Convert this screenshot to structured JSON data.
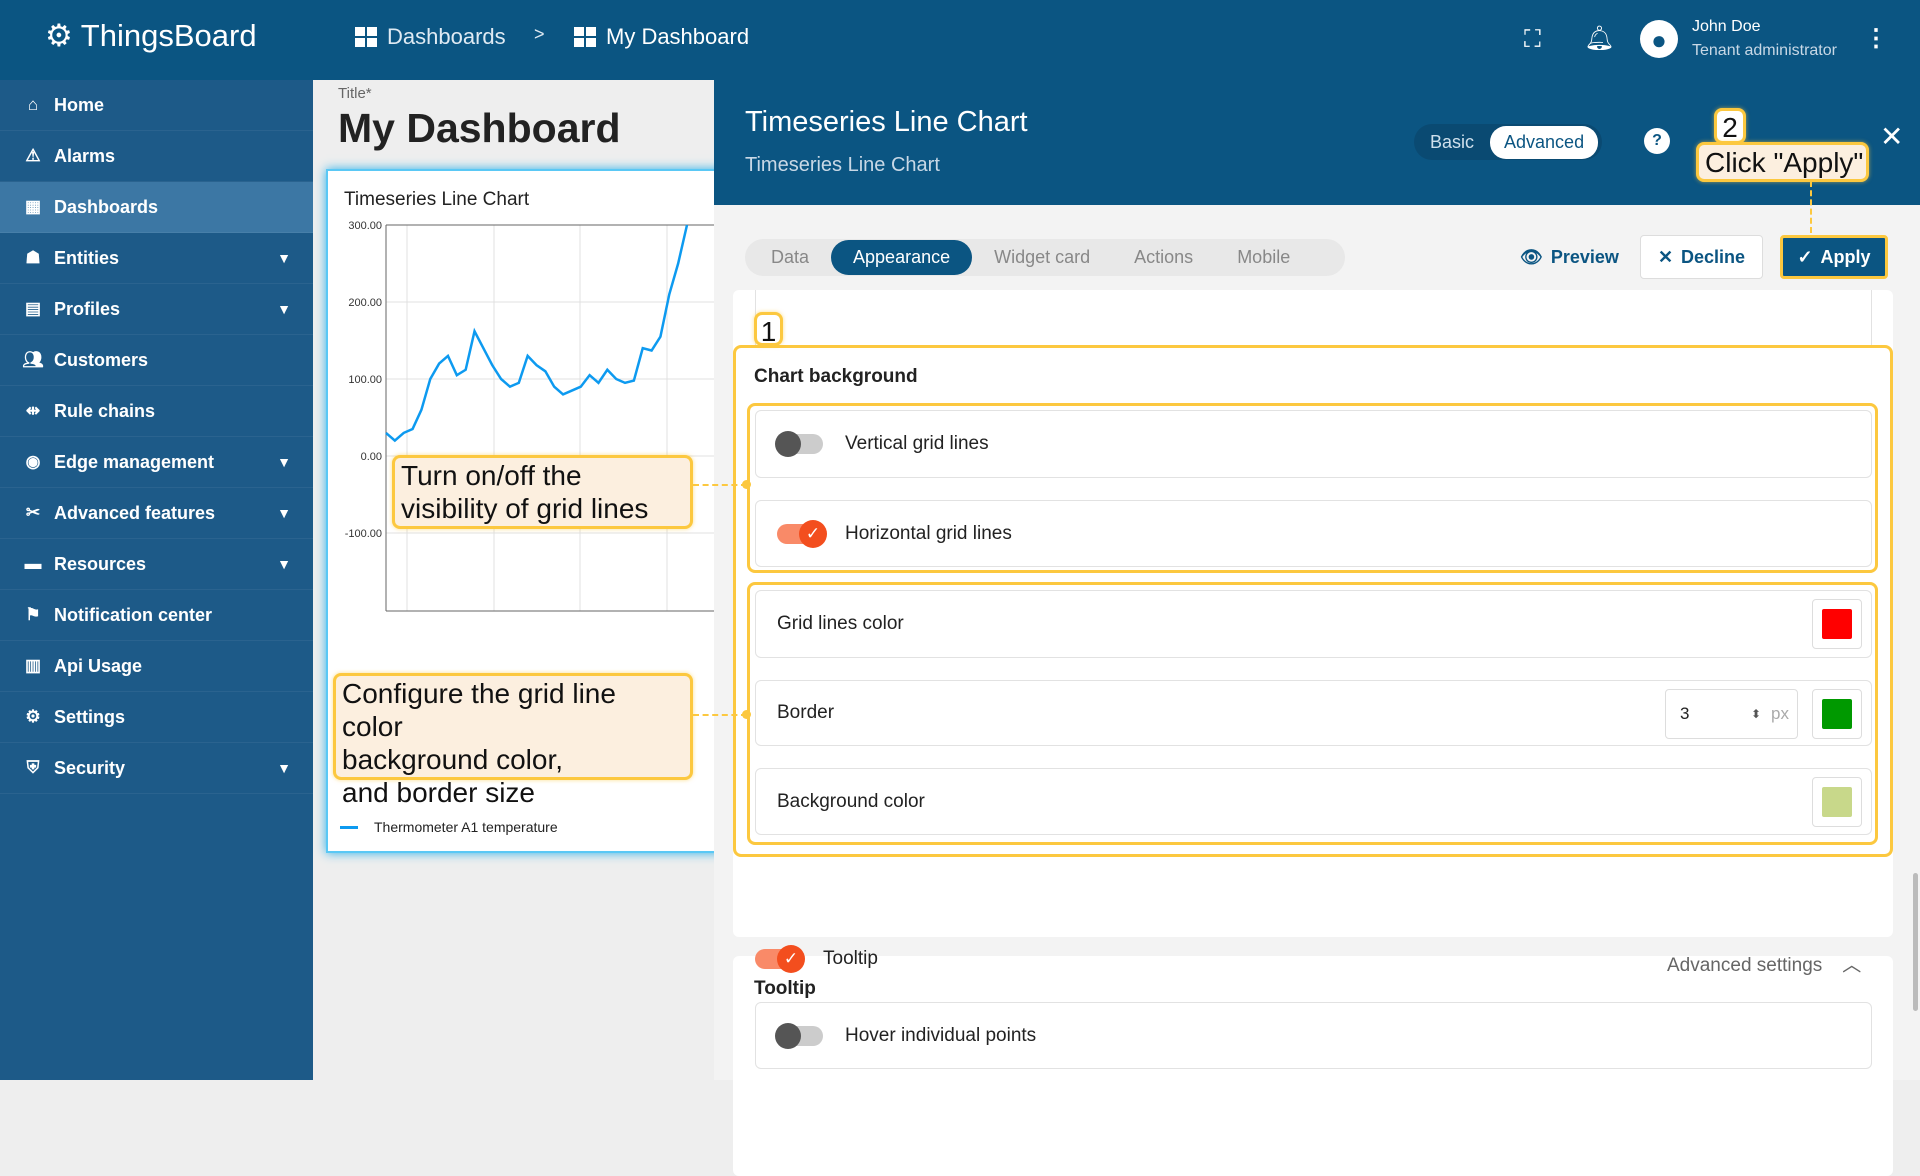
{
  "app": {
    "name": "ThingsBoard"
  },
  "breadcrumb": [
    {
      "label": "Dashboards"
    },
    {
      "label": "My Dashboard"
    }
  ],
  "breadcrumb_separator": ">",
  "user": {
    "name": "John Doe",
    "role": "Tenant administrator"
  },
  "sidebar": {
    "items": [
      {
        "label": "Home",
        "icon": "home-icon"
      },
      {
        "label": "Alarms",
        "icon": "warning-icon"
      },
      {
        "label": "Dashboards",
        "icon": "dashboard-icon",
        "active": true
      },
      {
        "label": "Entities",
        "icon": "entities-icon",
        "expandable": true
      },
      {
        "label": "Profiles",
        "icon": "profiles-icon",
        "expandable": true
      },
      {
        "label": "Customers",
        "icon": "customers-icon"
      },
      {
        "label": "Rule chains",
        "icon": "rule-chains-icon"
      },
      {
        "label": "Edge management",
        "icon": "edge-icon",
        "expandable": true
      },
      {
        "label": "Advanced features",
        "icon": "tools-icon",
        "expandable": true
      },
      {
        "label": "Resources",
        "icon": "folder-icon",
        "expandable": true
      },
      {
        "label": "Notification center",
        "icon": "notification-icon"
      },
      {
        "label": "Api Usage",
        "icon": "chart-icon"
      },
      {
        "label": "Settings",
        "icon": "gear-icon"
      },
      {
        "label": "Security",
        "icon": "shield-icon",
        "expandable": true
      }
    ]
  },
  "dashboard": {
    "title_label": "Title*",
    "title": "My Dashboard"
  },
  "widget": {
    "title": "Timeseries Line Chart"
  },
  "chart_data": {
    "type": "line",
    "title": "Timeseries Line Chart",
    "ylim": [
      -150,
      300
    ],
    "yticks": [
      "300.00",
      "200.00",
      "100.00",
      "0.00",
      "-100.00"
    ],
    "grid": true,
    "legend_position": "bottom-left",
    "series": [
      {
        "name": "Thermometer A1 temperature",
        "color": "#0d9af0",
        "values": [
          30,
          20,
          30,
          35,
          60,
          100,
          120,
          130,
          105,
          112,
          162,
          140,
          118,
          100,
          90,
          95,
          130,
          118,
          110,
          90,
          80,
          85,
          90,
          105,
          95,
          112,
          100,
          95,
          98,
          140,
          137,
          155,
          210,
          250,
          300
        ]
      }
    ]
  },
  "panel": {
    "title": "Timeseries Line Chart",
    "subtitle": "Timeseries Line Chart",
    "mode_basic": "Basic",
    "mode_advanced": "Advanced",
    "tabs": [
      "Data",
      "Appearance",
      "Widget card",
      "Actions",
      "Mobile"
    ],
    "active_tab": "Appearance",
    "preview": "Preview",
    "decline": "Decline",
    "apply": "Apply",
    "chart_background": {
      "heading": "Chart background",
      "vertical_grid": {
        "label": "Vertical grid lines",
        "enabled": false
      },
      "horizontal_grid": {
        "label": "Horizontal grid lines",
        "enabled": true
      },
      "grid_color": {
        "label": "Grid lines color",
        "color": "#ff0000"
      },
      "border": {
        "label": "Border",
        "value": "3",
        "unit": "px",
        "color": "#009900"
      },
      "background": {
        "label": "Background color",
        "color": "#c8d88a"
      }
    },
    "tooltip": {
      "heading": "Tooltip",
      "label": "Tooltip",
      "enabled": true,
      "advanced": "Advanced settings",
      "hover": {
        "label": "Hover individual points",
        "enabled": false
      }
    }
  },
  "annotations": {
    "step1": "1",
    "step2": "2",
    "callout_grid": "Turn on/off the visibility of grid lines",
    "callout_colors_lines": [
      "Configure the grid line color",
      "background color,",
      "and border size"
    ],
    "callout_apply": "Click \"Apply\""
  }
}
